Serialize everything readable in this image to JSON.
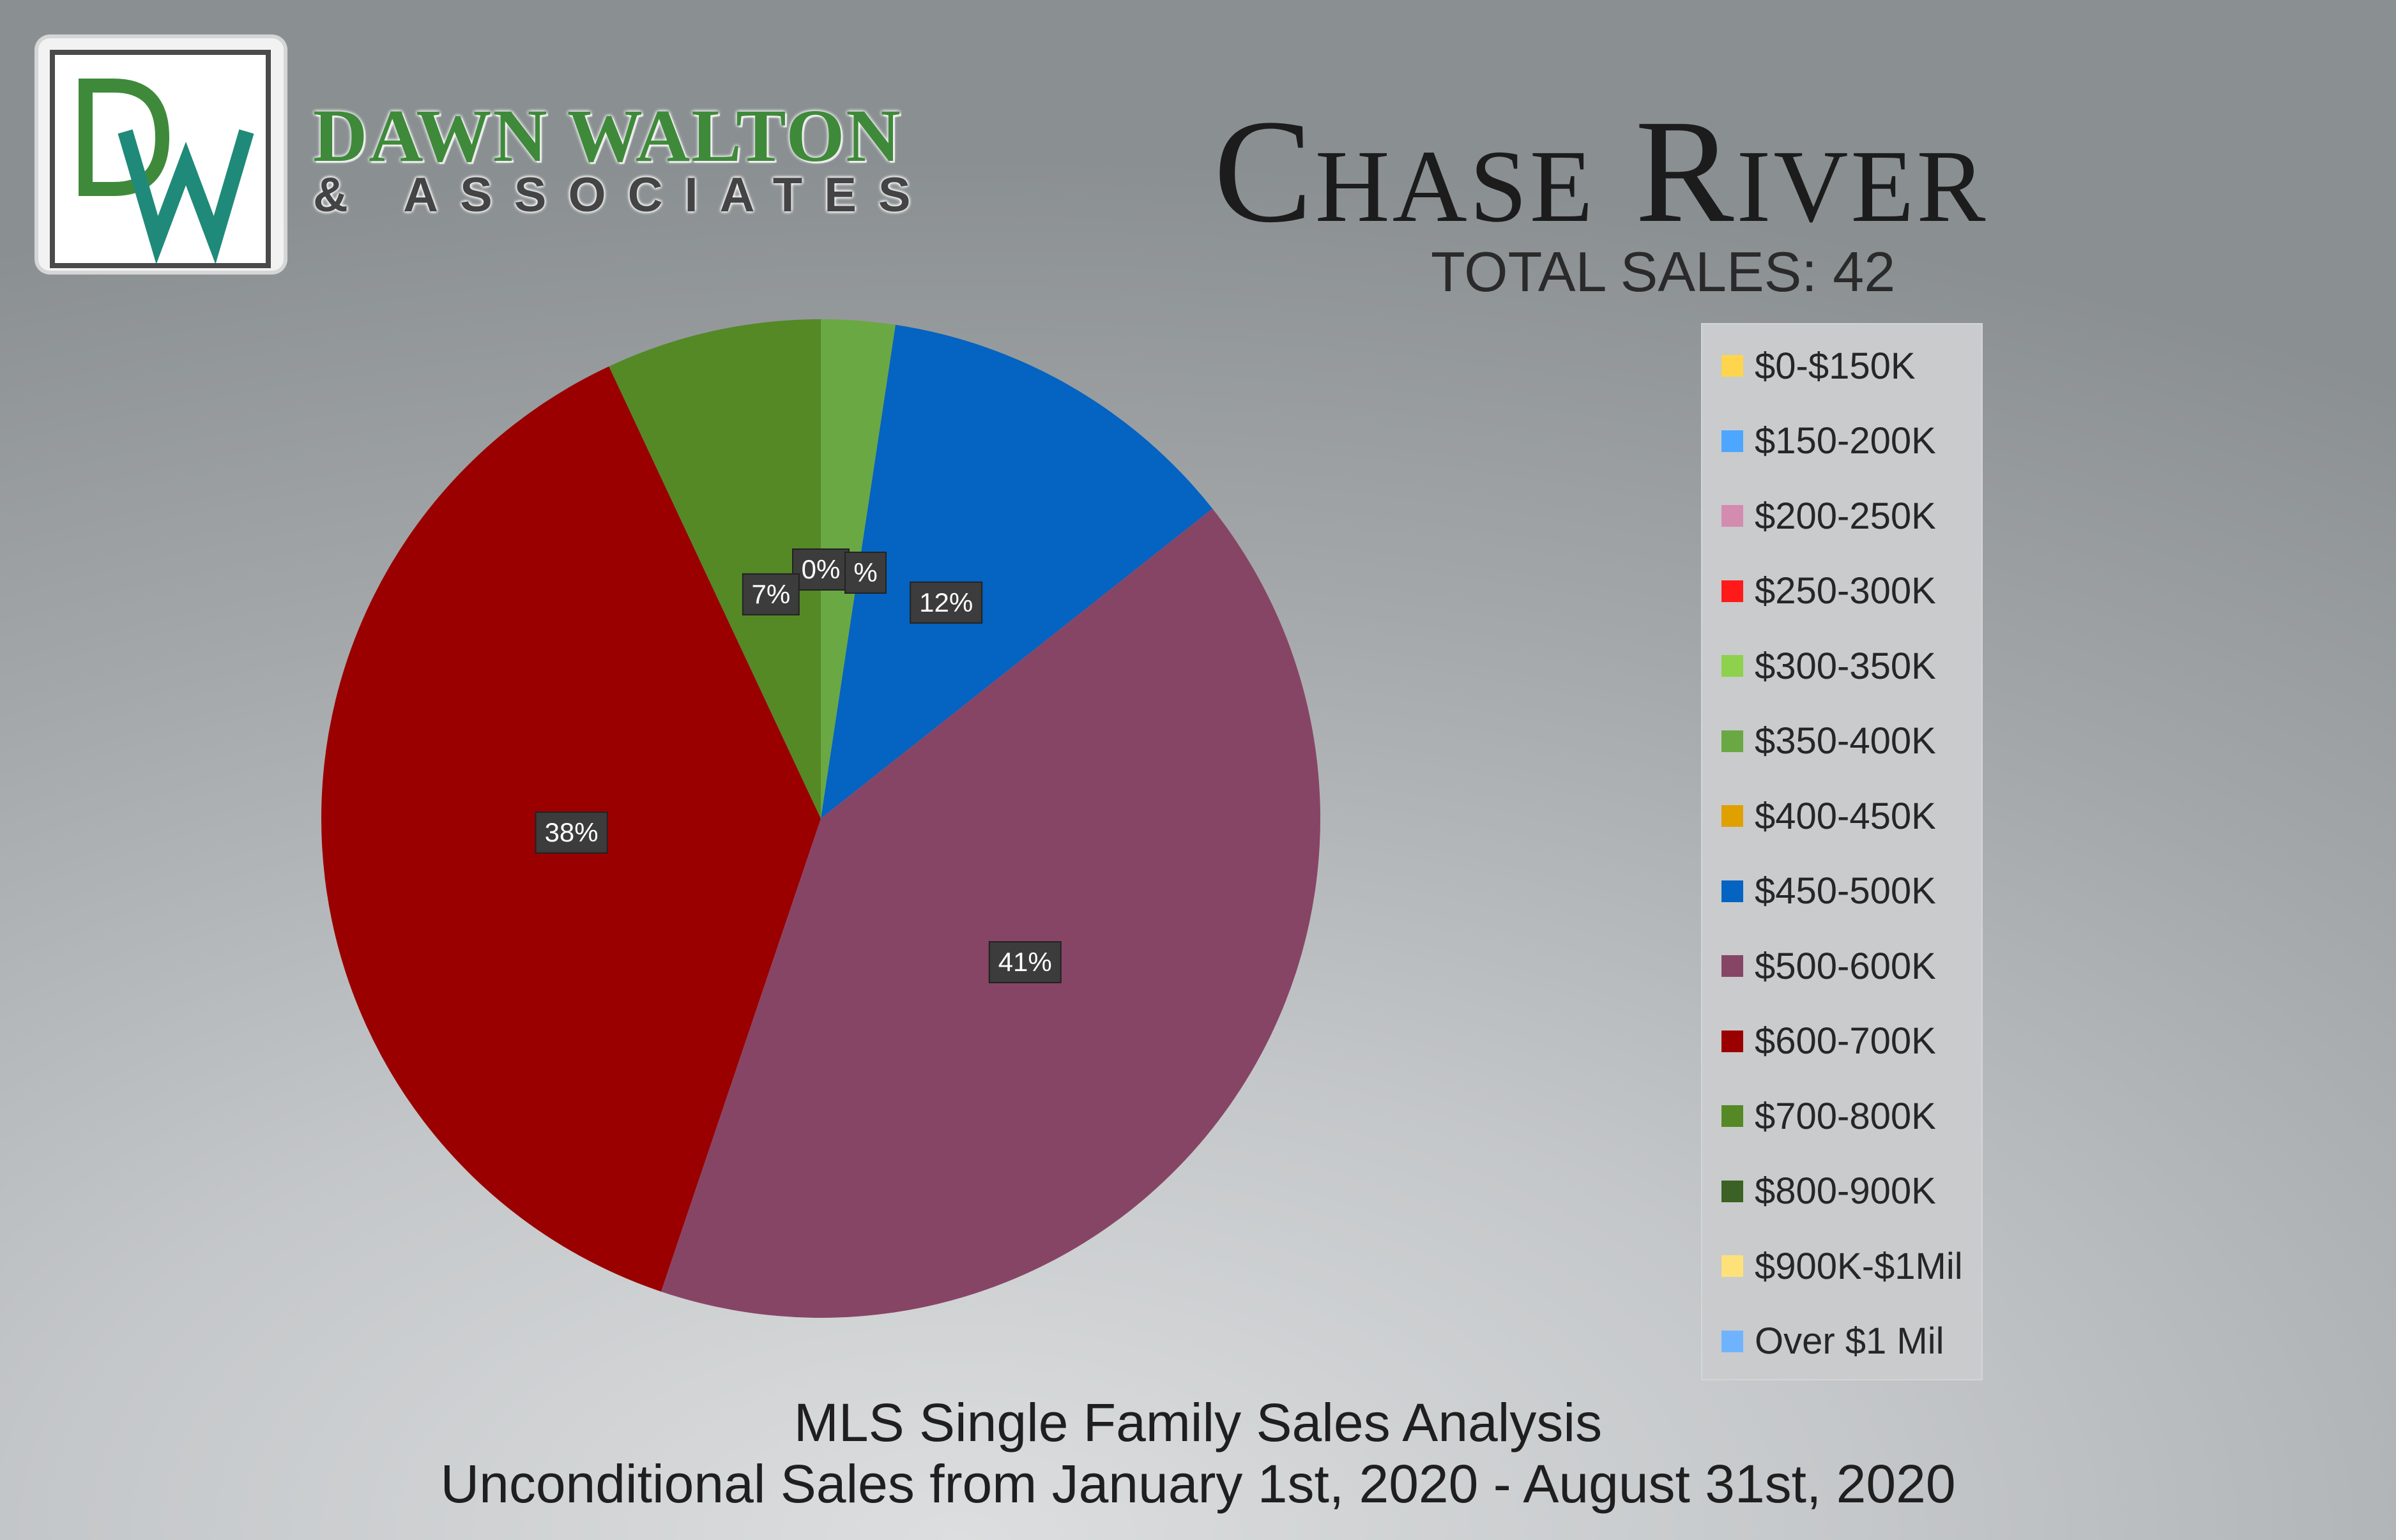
{
  "logo": {
    "monogram": "DW",
    "line1": "DAWN WALTON",
    "line2": "& ASSOCIATES"
  },
  "title": "Chase River",
  "subtitle": "TOTAL SALES: 42",
  "footer": {
    "line1": "MLS Single Family Sales Analysis",
    "line2": "Unconditional Sales from January 1st, 2020 - August 31st, 2020"
  },
  "colors": {
    "logo_green": "#3f8a3a",
    "logo_teal": "#1f8a7a"
  },
  "chart_data": {
    "type": "pie",
    "legend_position": "right",
    "slices": [
      {
        "label": "$0-$150K",
        "value": 0,
        "color": "#ffd54d",
        "display": ""
      },
      {
        "label": "$150-200K",
        "value": 0,
        "color": "#4da6ff",
        "display": ""
      },
      {
        "label": "$200-250K",
        "value": 0,
        "color": "#d48bb0",
        "display": ""
      },
      {
        "label": "$250-300K",
        "value": 0,
        "color": "#ff1a1a",
        "display": ""
      },
      {
        "label": "$300-350K",
        "value": 0,
        "color": "#8ed14c",
        "display": "0%"
      },
      {
        "label": "$350-400K",
        "value": 2.4,
        "color": "#6aa843",
        "display": "%"
      },
      {
        "label": "$400-450K",
        "value": 0,
        "color": "#e0a000",
        "display": ""
      },
      {
        "label": "$450-500K",
        "value": 12,
        "color": "#0563c1",
        "display": "12%"
      },
      {
        "label": "$500-600K",
        "value": 41,
        "color": "#874566",
        "display": "41%"
      },
      {
        "label": "$600-700K",
        "value": 38,
        "color": "#9a0000",
        "display": "38%"
      },
      {
        "label": "$700-800K",
        "value": 7,
        "color": "#548926",
        "display": "7%"
      },
      {
        "label": "$800-900K",
        "value": 0,
        "color": "#3b6124",
        "display": ""
      },
      {
        "label": "$900K-$1Mil",
        "value": 0,
        "color": "#ffe17a",
        "display": ""
      },
      {
        "label": "Over $1 Mil",
        "value": 0,
        "color": "#6fb3ff",
        "display": ""
      }
    ]
  }
}
